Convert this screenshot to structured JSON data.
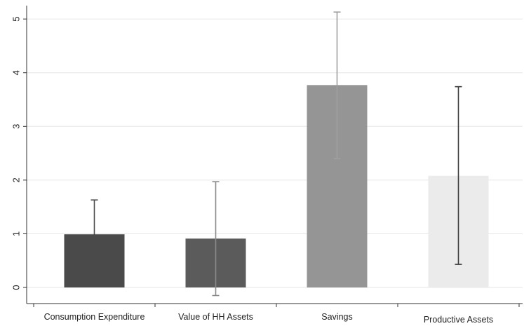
{
  "chart_data": {
    "type": "bar",
    "title": "",
    "xlabel": "",
    "ylabel": "",
    "ylim": [
      -0.3,
      5.25
    ],
    "yticks": [
      0,
      1,
      2,
      3,
      4,
      5
    ],
    "grid": true,
    "categories": [
      "Consumption Expenditure",
      "Value of HH Assets",
      "Savings",
      "Productive Assets"
    ],
    "values": [
      0.99,
      0.91,
      3.77,
      2.08
    ],
    "error_low": [
      0.34,
      -0.15,
      2.4,
      0.43
    ],
    "error_high": [
      1.63,
      1.97,
      5.13,
      3.74
    ],
    "bar_colors": [
      "#4a4a4a",
      "#5b5b5b",
      "#959595",
      "#ebebeb"
    ],
    "error_colors": [
      "#4a4a4a",
      "#8a8a8a",
      "#a0a0a0",
      "#3a3a3a"
    ]
  }
}
